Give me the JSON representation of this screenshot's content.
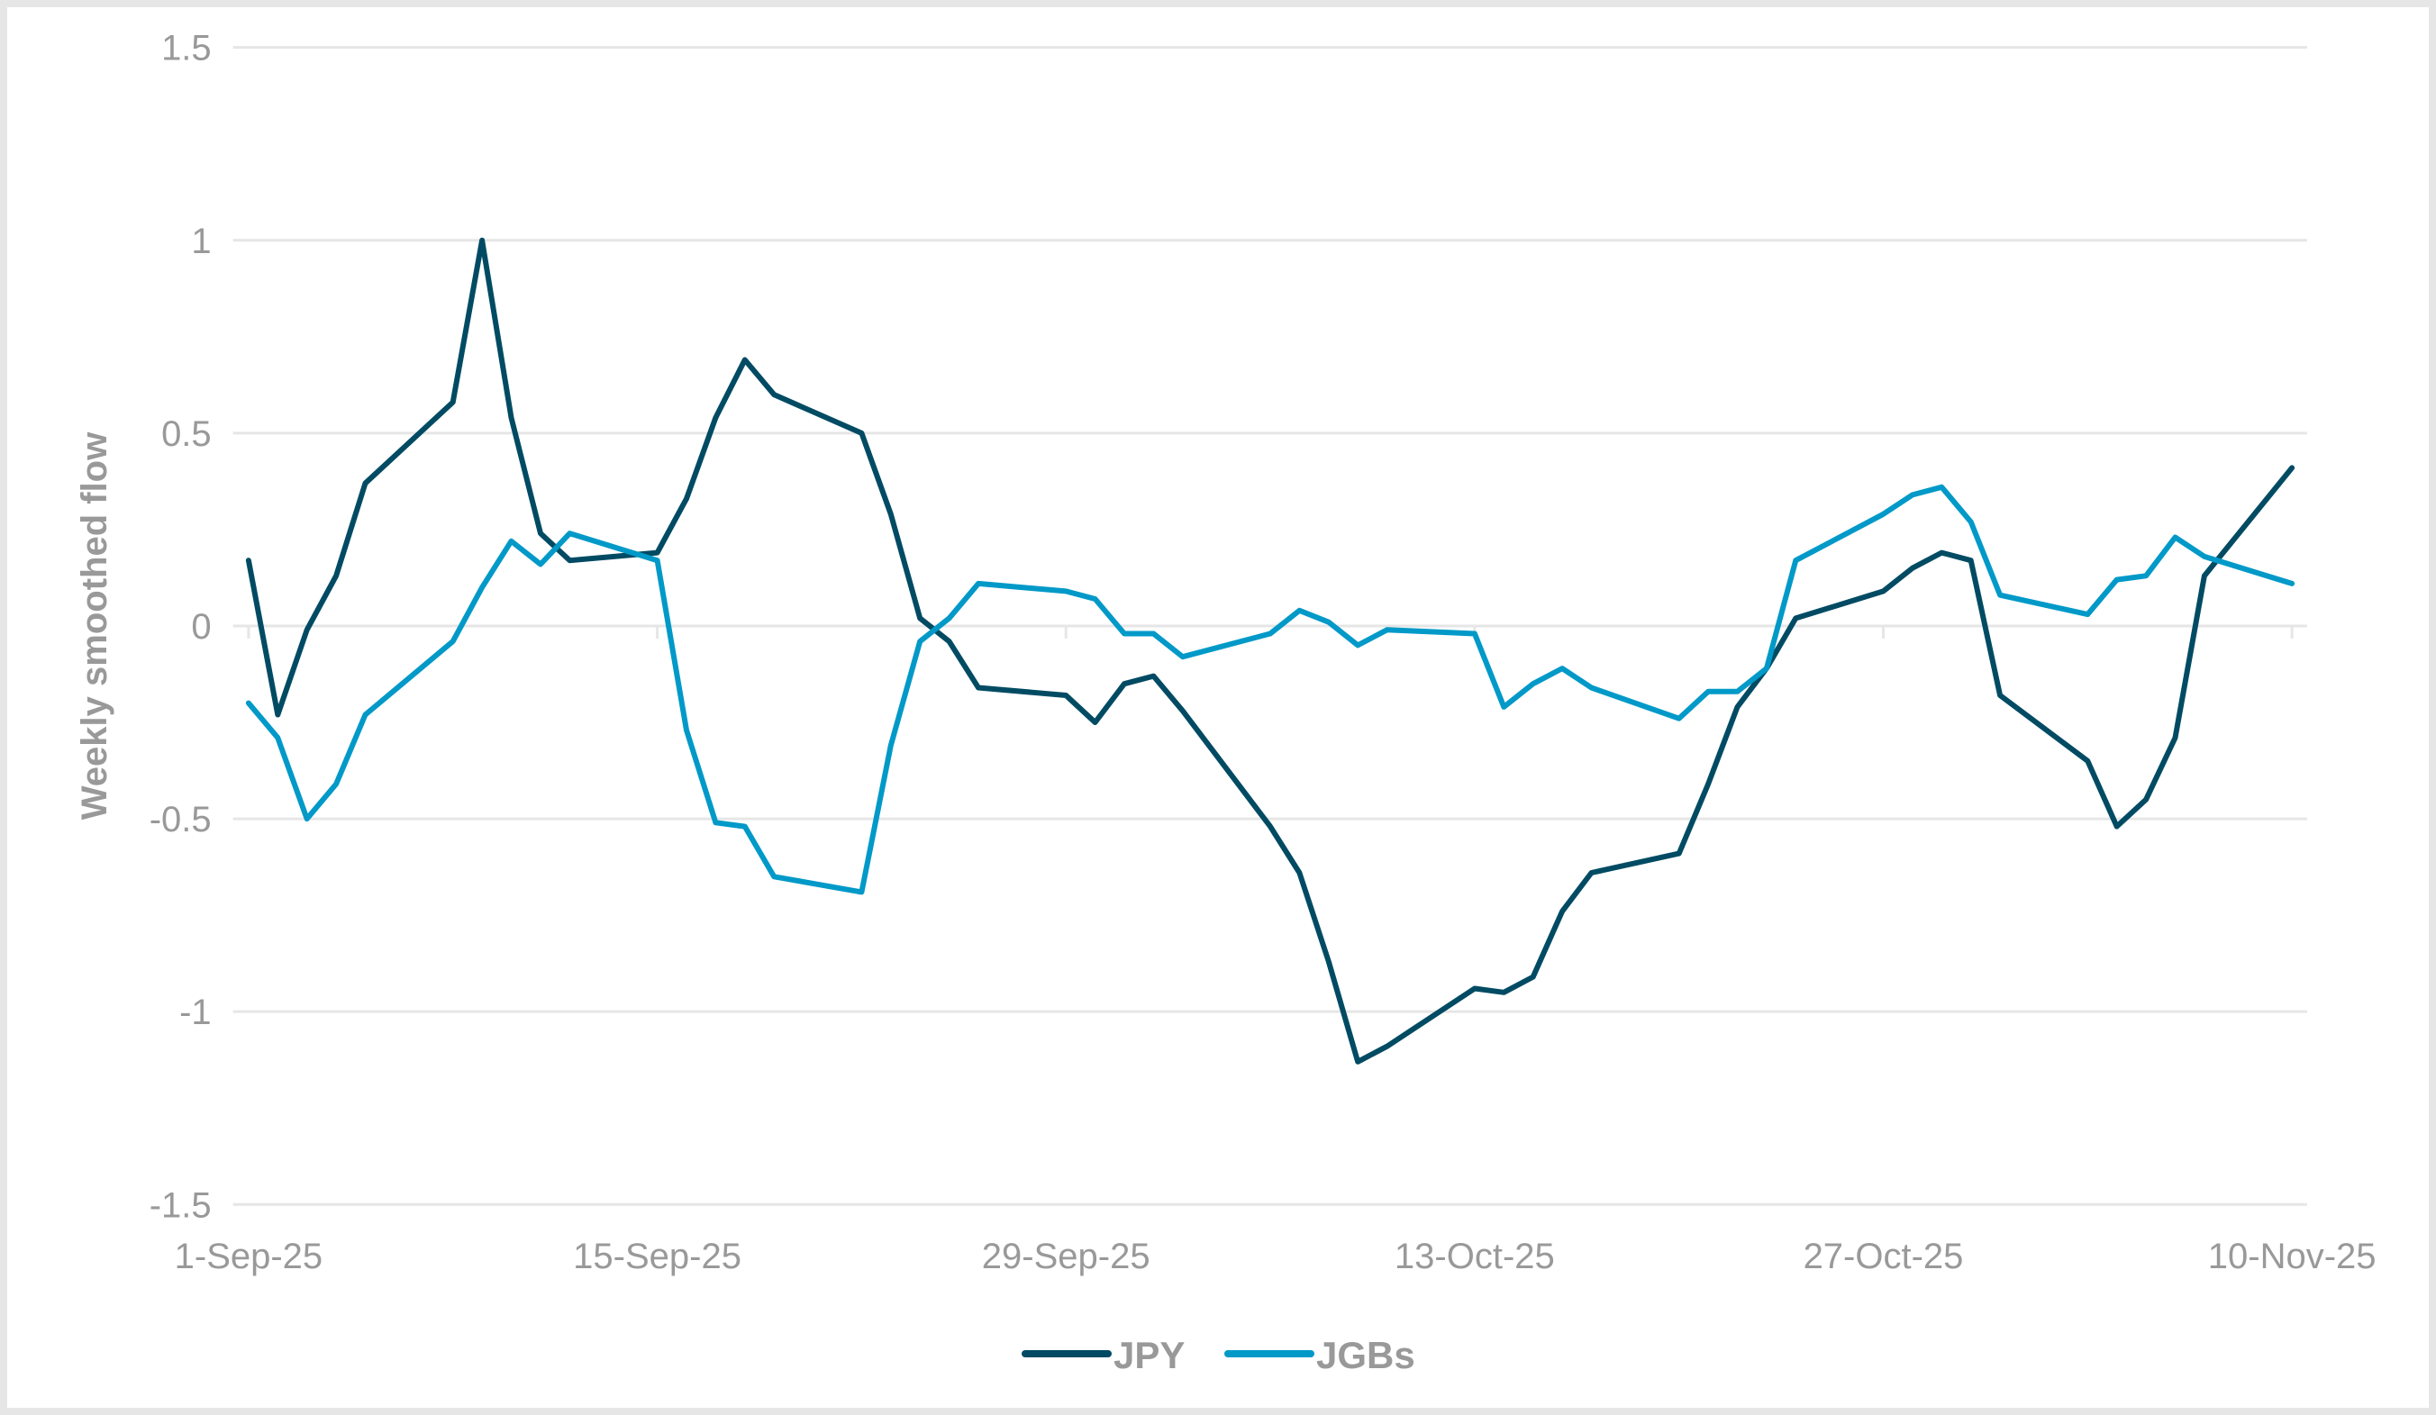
{
  "chart_data": {
    "type": "line",
    "title": "",
    "xlabel": "",
    "ylabel": "Weekly smoothed flow",
    "ylim": [
      -1.5,
      1.5
    ],
    "yticks": [
      "1.5",
      "1",
      "0.5",
      "0",
      "-0.5",
      "-1",
      "-1.5"
    ],
    "ytick_values": [
      1.5,
      1,
      0.5,
      0,
      -0.5,
      -1,
      -1.5
    ],
    "xtick_labels": [
      "1-Sep-25",
      "15-Sep-25",
      "29-Sep-25",
      "13-Oct-25",
      "27-Oct-25",
      "10-Nov-25"
    ],
    "xtick_day_offsets": [
      0,
      14,
      28,
      42,
      56,
      70
    ],
    "grid": true,
    "legend_position": "bottom",
    "x_day_offsets": [
      0,
      1,
      2,
      3,
      4,
      7,
      8,
      9,
      10,
      11,
      14,
      15,
      16,
      17,
      18,
      21,
      22,
      23,
      24,
      25,
      28,
      29,
      30,
      31,
      32,
      35,
      36,
      37,
      38,
      39,
      42,
      43,
      44,
      45,
      46,
      49,
      50,
      51,
      52,
      53,
      56,
      57,
      58,
      59,
      60,
      63,
      64,
      65,
      66,
      67,
      70
    ],
    "x": [
      "1-Sep-25",
      "2-Sep-25",
      "3-Sep-25",
      "4-Sep-25",
      "5-Sep-25",
      "8-Sep-25",
      "9-Sep-25",
      "10-Sep-25",
      "11-Sep-25",
      "12-Sep-25",
      "15-Sep-25",
      "16-Sep-25",
      "17-Sep-25",
      "18-Sep-25",
      "19-Sep-25",
      "22-Sep-25",
      "23-Sep-25",
      "24-Sep-25",
      "25-Sep-25",
      "26-Sep-25",
      "29-Sep-25",
      "30-Sep-25",
      "1-Oct-25",
      "2-Oct-25",
      "3-Oct-25",
      "6-Oct-25",
      "7-Oct-25",
      "8-Oct-25",
      "9-Oct-25",
      "10-Oct-25",
      "13-Oct-25",
      "14-Oct-25",
      "15-Oct-25",
      "16-Oct-25",
      "17-Oct-25",
      "20-Oct-25",
      "21-Oct-25",
      "22-Oct-25",
      "23-Oct-25",
      "24-Oct-25",
      "27-Oct-25",
      "28-Oct-25",
      "29-Oct-25",
      "30-Oct-25",
      "31-Oct-25",
      "3-Nov-25",
      "4-Nov-25",
      "5-Nov-25",
      "6-Nov-25",
      "7-Nov-25",
      "10-Nov-25"
    ],
    "series": [
      {
        "name": "JPY",
        "color": "#004b63",
        "values": [
          0.17,
          -0.23,
          -0.01,
          0.13,
          0.37,
          0.58,
          1.0,
          0.54,
          0.24,
          0.17,
          0.19,
          0.33,
          0.54,
          0.69,
          0.6,
          0.5,
          0.29,
          0.02,
          -0.04,
          -0.16,
          -0.18,
          -0.25,
          -0.15,
          -0.13,
          -0.22,
          -0.52,
          -0.64,
          -0.87,
          -1.13,
          -1.09,
          -0.94,
          -0.95,
          -0.91,
          -0.74,
          -0.64,
          -0.59,
          -0.41,
          -0.21,
          -0.11,
          0.02,
          0.09,
          0.15,
          0.19,
          0.17,
          -0.18,
          -0.35,
          -0.52,
          -0.45,
          -0.29,
          0.13,
          0.41
        ]
      },
      {
        "name": "JGBs",
        "color": "#0099c8",
        "values": [
          -0.2,
          -0.29,
          -0.5,
          -0.41,
          -0.23,
          -0.04,
          0.1,
          0.22,
          0.16,
          0.24,
          0.17,
          -0.27,
          -0.51,
          -0.52,
          -0.65,
          -0.69,
          -0.31,
          -0.04,
          0.02,
          0.11,
          0.09,
          0.07,
          -0.02,
          -0.02,
          -0.08,
          -0.02,
          0.04,
          0.01,
          -0.05,
          -0.01,
          -0.02,
          -0.21,
          -0.15,
          -0.11,
          -0.16,
          -0.24,
          -0.17,
          -0.17,
          -0.11,
          0.17,
          0.29,
          0.34,
          0.36,
          0.27,
          0.08,
          0.03,
          0.12,
          0.13,
          0.23,
          0.18,
          0.11
        ]
      }
    ]
  },
  "legend": {
    "items": [
      {
        "label": "JPY",
        "color": "#004b63"
      },
      {
        "label": "JGBs",
        "color": "#0099c8"
      }
    ]
  },
  "colors": {
    "gridline": "#e6e6e6",
    "tick_text": "#999999",
    "background": "#ffffff",
    "border": "#e6e6e6"
  }
}
